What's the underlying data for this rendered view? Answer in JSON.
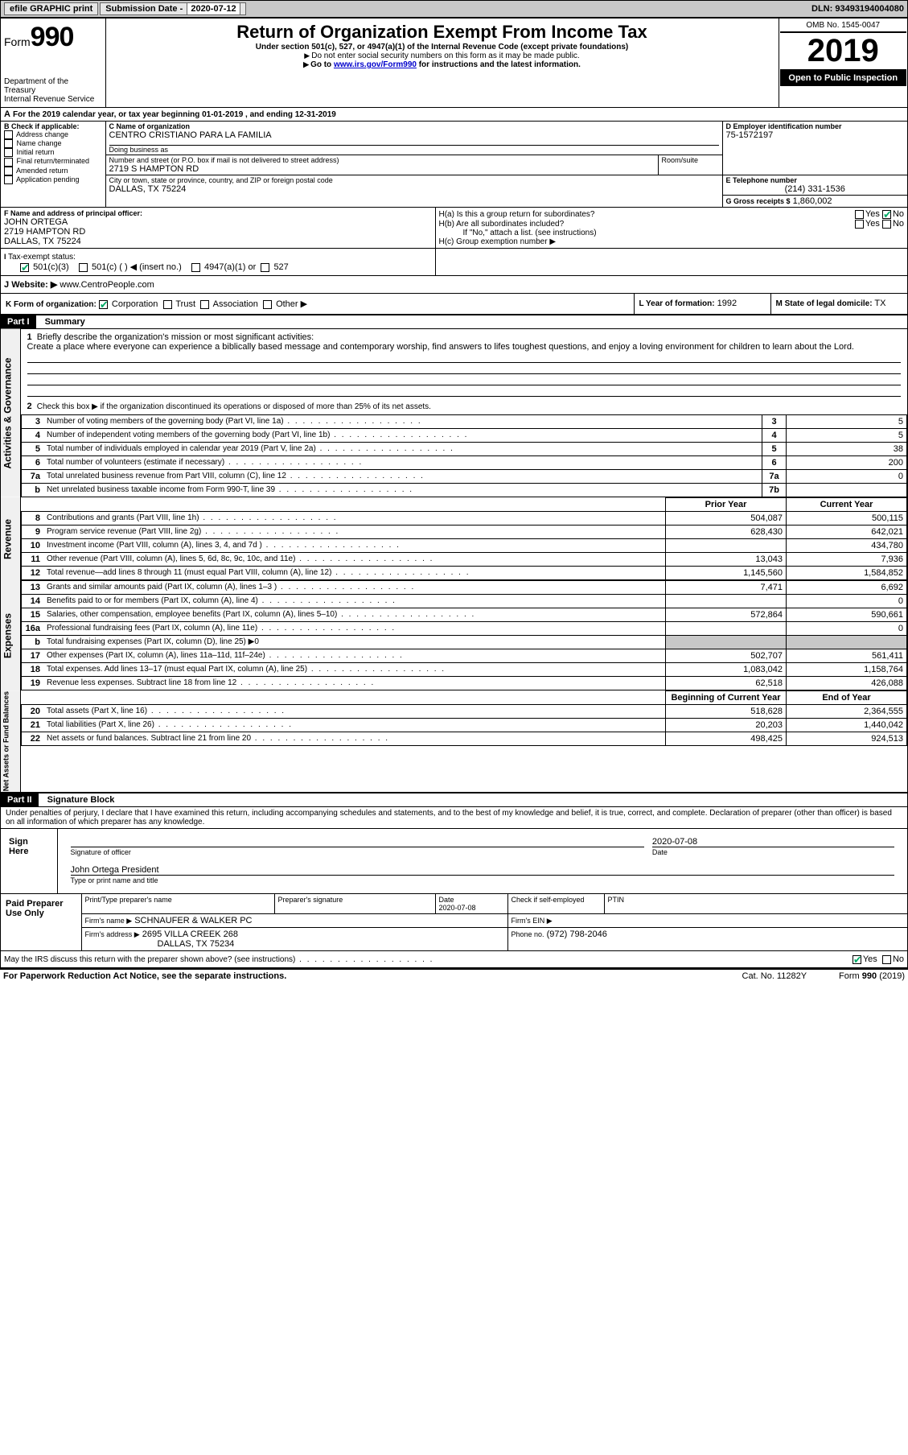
{
  "topbar": {
    "efile": "efile GRAPHIC print",
    "submission_label": "Submission Date - ",
    "submission_date": "2020-07-12",
    "dln_label": "DLN: ",
    "dln": "93493194004080"
  },
  "header": {
    "form_label": "Form",
    "form_number": "990",
    "dept": "Department of the Treasury",
    "irs": "Internal Revenue Service",
    "title": "Return of Organization Exempt From Income Tax",
    "subtitle": "Under section 501(c), 527, or 4947(a)(1) of the Internal Revenue Code (except private foundations)",
    "note1": "Do not enter social security numbers on this form as it may be made public.",
    "note2_pre": "Go to ",
    "note2_link": "www.irs.gov/Form990",
    "note2_post": " for instructions and the latest information.",
    "omb": "OMB No. 1545-0047",
    "year": "2019",
    "open": "Open to Public Inspection"
  },
  "periodline": "For the 2019 calendar year, or tax year beginning 01-01-2019    , and ending 12-31-2019",
  "sectionA": "A",
  "sectionB": {
    "label": "B Check if applicable:",
    "items": [
      "Address change",
      "Name change",
      "Initial return",
      "Final return/terminated",
      "Amended return",
      "Application pending"
    ]
  },
  "sectionC": {
    "name_label": "C Name of organization",
    "name": "CENTRO CRISTIANO PARA LA FAMILIA",
    "dba_label": "Doing business as",
    "addr_label": "Number and street (or P.O. box if mail is not delivered to street address)",
    "room_label": "Room/suite",
    "addr": "2719 S HAMPTON RD",
    "city_label": "City or town, state or province, country, and ZIP or foreign postal code",
    "city": "DALLAS, TX   75224"
  },
  "sectionD": {
    "label": "D Employer identification number",
    "value": "75-1572197"
  },
  "sectionE": {
    "label": "E Telephone number",
    "value": "(214) 331-1536"
  },
  "sectionG": {
    "label": "G Gross receipts $",
    "value": "1,860,002"
  },
  "sectionF": {
    "label": "F  Name and address of principal officer:",
    "name": "JOHN ORTEGA",
    "addr1": "2719 HAMPTON RD",
    "addr2": "DALLAS, TX   75224"
  },
  "sectionH": {
    "a": "H(a)  Is this a group return for subordinates?",
    "b": "H(b)  Are all subordinates included?",
    "bnote": "If \"No,\" attach a list. (see instructions)",
    "c": "H(c)  Group exemption number ▶",
    "yes": "Yes",
    "no": "No"
  },
  "sectionI": {
    "label": "Tax-exempt status:",
    "o1": "501(c)(3)",
    "o2": "501(c) (   ) ◀ (insert no.)",
    "o3": "4947(a)(1) or",
    "o4": "527"
  },
  "sectionJ": {
    "label": "J",
    "text": "Website: ▶",
    "value": "www.CentroPeople.com"
  },
  "sectionK": {
    "label": "K Form of organization:",
    "o1": "Corporation",
    "o2": "Trust",
    "o3": "Association",
    "o4": "Other ▶"
  },
  "sectionL": {
    "label": "L Year of formation:",
    "value": "1992"
  },
  "sectionM": {
    "label": "M State of legal domicile:",
    "value": "TX"
  },
  "part1": {
    "bar": "Part I",
    "title": "Summary",
    "q1": "Briefly describe the organization's mission or most significant activities:",
    "q1text": "Create a place where everyone can experience a biblically based message and contemporary worship, find answers to lifes toughest questions, and enjoy a loving environment for children to learn about the Lord.",
    "q2": "Check this box ▶        if the organization discontinued its operations or disposed of more than 25% of its net assets.",
    "headers": {
      "prior": "Prior Year",
      "current": "Current Year",
      "begin": "Beginning of Current Year",
      "end": "End of Year"
    },
    "gov_rows": [
      {
        "n": "3",
        "d": "Number of voting members of the governing body (Part VI, line 1a)",
        "ln": "3",
        "v": "5"
      },
      {
        "n": "4",
        "d": "Number of independent voting members of the governing body (Part VI, line 1b)",
        "ln": "4",
        "v": "5"
      },
      {
        "n": "5",
        "d": "Total number of individuals employed in calendar year 2019 (Part V, line 2a)",
        "ln": "5",
        "v": "38"
      },
      {
        "n": "6",
        "d": "Total number of volunteers (estimate if necessary)",
        "ln": "6",
        "v": "200"
      },
      {
        "n": "7a",
        "d": "Total unrelated business revenue from Part VIII, column (C), line 12",
        "ln": "7a",
        "v": "0"
      },
      {
        "n": "b",
        "d": "Net unrelated business taxable income from Form 990-T, line 39",
        "ln": "7b",
        "v": ""
      }
    ],
    "rev_rows": [
      {
        "n": "8",
        "d": "Contributions and grants (Part VIII, line 1h)",
        "p": "504,087",
        "c": "500,115"
      },
      {
        "n": "9",
        "d": "Program service revenue (Part VIII, line 2g)",
        "p": "628,430",
        "c": "642,021"
      },
      {
        "n": "10",
        "d": "Investment income (Part VIII, column (A), lines 3, 4, and 7d )",
        "p": "",
        "c": "434,780"
      },
      {
        "n": "11",
        "d": "Other revenue (Part VIII, column (A), lines 5, 6d, 8c, 9c, 10c, and 11e)",
        "p": "13,043",
        "c": "7,936"
      },
      {
        "n": "12",
        "d": "Total revenue—add lines 8 through 11 (must equal Part VIII, column (A), line 12)",
        "p": "1,145,560",
        "c": "1,584,852"
      }
    ],
    "exp_rows": [
      {
        "n": "13",
        "d": "Grants and similar amounts paid (Part IX, column (A), lines 1–3 )",
        "p": "7,471",
        "c": "6,692"
      },
      {
        "n": "14",
        "d": "Benefits paid to or for members (Part IX, column (A), line 4)",
        "p": "",
        "c": "0"
      },
      {
        "n": "15",
        "d": "Salaries, other compensation, employee benefits (Part IX, column (A), lines 5–10)",
        "p": "572,864",
        "c": "590,661"
      },
      {
        "n": "16a",
        "d": "Professional fundraising fees (Part IX, column (A), line 11e)",
        "p": "",
        "c": "0"
      },
      {
        "n": "b",
        "d": "Total fundraising expenses (Part IX, column (D), line 25) ▶0",
        "shade": true
      },
      {
        "n": "17",
        "d": "Other expenses (Part IX, column (A), lines 11a–11d, 11f–24e)",
        "p": "502,707",
        "c": "561,411"
      },
      {
        "n": "18",
        "d": "Total expenses. Add lines 13–17 (must equal Part IX, column (A), line 25)",
        "p": "1,083,042",
        "c": "1,158,764"
      },
      {
        "n": "19",
        "d": "Revenue less expenses. Subtract line 18 from line 12",
        "p": "62,518",
        "c": "426,088"
      }
    ],
    "net_rows": [
      {
        "n": "20",
        "d": "Total assets (Part X, line 16)",
        "p": "518,628",
        "c": "2,364,555"
      },
      {
        "n": "21",
        "d": "Total liabilities (Part X, line 26)",
        "p": "20,203",
        "c": "1,440,042"
      },
      {
        "n": "22",
        "d": "Net assets or fund balances. Subtract line 21 from line 20",
        "p": "498,425",
        "c": "924,513"
      }
    ],
    "side": {
      "gov": "Activities & Governance",
      "rev": "Revenue",
      "exp": "Expenses",
      "net": "Net Assets or Fund Balances"
    }
  },
  "part2": {
    "bar": "Part II",
    "title": "Signature Block",
    "decl": "Under penalties of perjury, I declare that I have examined this return, including accompanying schedules and statements, and to the best of my knowledge and belief, it is true, correct, and complete. Declaration of preparer (other than officer) is based on all information of which preparer has any knowledge.",
    "sign_here": "Sign Here",
    "sig_officer": "Signature of officer",
    "date": "Date",
    "date_val": "2020-07-08",
    "name_title": "John Ortega  President",
    "type_name": "Type or print name and title",
    "paid": "Paid Preparer Use Only",
    "prep_name": "Print/Type preparer's name",
    "prep_sig": "Preparer's signature",
    "prep_date": "Date",
    "prep_date_val": "2020-07-08",
    "check_self": "Check        if self-employed",
    "ptin": "PTIN",
    "firm_name_l": "Firm's name     ▶",
    "firm_name": "SCHNAUFER & WALKER PC",
    "firm_ein": "Firm's EIN ▶",
    "firm_addr_l": "Firm's address ▶",
    "firm_addr1": "2695 VILLA CREEK 268",
    "firm_addr2": "DALLAS, TX   75234",
    "phone_l": "Phone no.",
    "phone": "(972) 798-2046",
    "discuss": "May the IRS discuss this return with the preparer shown above? (see instructions)"
  },
  "footer": {
    "left": "For Paperwork Reduction Act Notice, see the separate instructions.",
    "mid": "Cat. No. 11282Y",
    "right": "Form 990 (2019)"
  }
}
